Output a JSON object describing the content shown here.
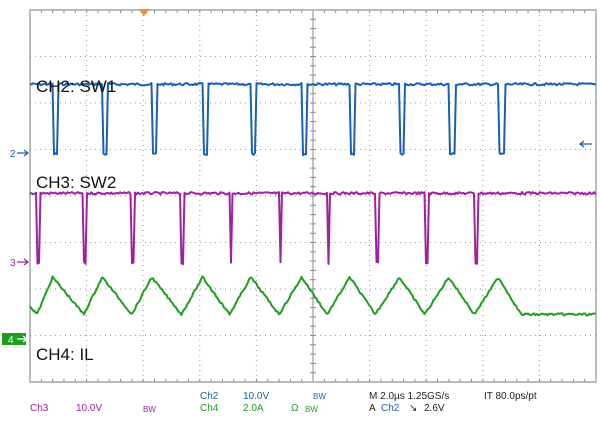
{
  "chart_data": {
    "type": "line",
    "title": "",
    "grid": true,
    "divisions": {
      "x": 10,
      "y": 8
    },
    "timebase_per_div_us": 2.0,
    "x_range_us": [
      0,
      20
    ],
    "colors": {
      "ch2": "#1a5fb4",
      "ch3": "#a020a0",
      "ch4": "#1e9e1e"
    },
    "series": [
      {
        "name": "CH2: SW1",
        "channel_marker": "2",
        "description": "switching node square wave with narrow low pulses",
        "high_level_div": 1.5,
        "low_level_div": 0.0,
        "low_pulse_starts_us": [
          0.8,
          2.55,
          4.3,
          6.1,
          7.8,
          9.6,
          11.3,
          13.05,
          14.8,
          16.55
        ],
        "low_pulse_width_us": 0.2
      },
      {
        "name": "CH3: SW2",
        "channel_marker": "3",
        "description": "switching node square wave with very narrow low pulses",
        "high_level_div": 1.5,
        "low_level_div": 0.0,
        "low_pulse_starts_us": [
          0.25,
          1.9,
          3.6,
          5.35,
          7.05,
          8.8,
          10.5,
          12.2,
          13.95,
          15.7
        ],
        "low_pulse_width_us": 0.1
      },
      {
        "name": "CH4: IL",
        "channel_marker": "4",
        "description": "inductor current sawtooth",
        "ramp_start_us": [
          0.25,
          1.9,
          3.6,
          5.35,
          7.05,
          8.8,
          10.5,
          12.2,
          13.95,
          15.7
        ],
        "ramp_end_us": [
          0.8,
          2.55,
          4.3,
          6.1,
          7.8,
          9.6,
          11.3,
          13.05,
          14.8,
          16.55
        ],
        "min_div": 0.55,
        "max_div": 1.35
      }
    ]
  },
  "labels": {
    "ch2": "CH2: SW1",
    "ch3": "CH3: SW2",
    "ch4": "CH4: IL"
  },
  "markers": {
    "ch2": "2",
    "ch3": "3",
    "ch4": "4"
  },
  "status_bar": {
    "ch2_name": "Ch2",
    "ch2_scale": "10.0V",
    "ch2_bw": "BW",
    "ch3_name": "Ch3",
    "ch3_scale": "10.0V",
    "ch3_bw": "BW",
    "ch4_name": "Ch4",
    "ch4_scale": "2.0A",
    "ch4_omega": "Ω",
    "ch4_bw": "BW",
    "timebase": "M 2.0µs 1.25GS/s",
    "resolution": "IT 80.0ps/pt",
    "trigger_label": "A",
    "trigger_channel": "Ch2",
    "trigger_slope": "↘",
    "trigger_level": "2.6V"
  }
}
